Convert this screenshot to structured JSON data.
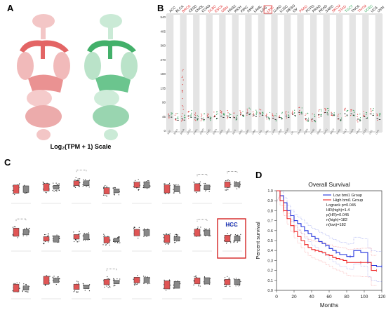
{
  "panel_a": {
    "letter": "A",
    "scale_label": "Log₂(TPM + 1) Scale",
    "colors": {
      "tumor": "#e05555",
      "normal": "#2fa85a"
    }
  },
  "panel_b": {
    "letter": "B",
    "cancers": [
      "ACC",
      "BLCA",
      "BRCA",
      "CESC",
      "CHOL",
      "COAD",
      "DLBC",
      "ESCA",
      "GBM",
      "HNSC",
      "KICH",
      "KIRC",
      "KIRP",
      "LAML",
      "LGG",
      "LIHC",
      "LUAD",
      "LUSC",
      "MESO",
      "OV",
      "PAAD",
      "PCPG",
      "PRAD",
      "READ",
      "SARC",
      "SKCM",
      "STAD",
      "TGCT",
      "THCA",
      "THYM",
      "UCEC",
      "UCS",
      "UVM"
    ],
    "label_colors": {
      "BRCA": "#e03030",
      "DLBC": "#e03030",
      "ESCA": "#e03030",
      "GBM": "#e03030",
      "LIHC": "#e03030",
      "PAAD": "#e03030",
      "SKCM": "#e03030",
      "STAD": "#e03030",
      "TGCT": "#2fa85a",
      "THYM": "#e03030",
      "UCEC": "#2fa85a"
    },
    "highlight": "LIHC",
    "y_ticks": [
      "540",
      "405",
      "360",
      "270",
      "180",
      "135",
      "90",
      "45",
      "0"
    ]
  },
  "panel_c": {
    "letter": "C",
    "highlight_label": "HCC",
    "rows": 3,
    "cols": 8
  },
  "panel_d": {
    "letter": "D",
    "chart_data": {
      "type": "line",
      "title": "Overall Survival",
      "xlabel": "Months",
      "ylabel": "Percent survival",
      "xlim": [
        0,
        120
      ],
      "ylim": [
        0,
        1.0
      ],
      "x_ticks": [
        "0",
        "20",
        "40",
        "60",
        "80",
        "100",
        "120"
      ],
      "y_ticks": [
        "0.0",
        "0.1",
        "0.2",
        "0.3",
        "0.4",
        "0.5",
        "0.6",
        "0.7",
        "0.8",
        "0.9",
        "1.0"
      ],
      "legend": {
        "placement": "top-right",
        "lines": [
          "Low bmi1 Group",
          "High bmi1 Group",
          "Logrank p=0.045",
          "HR(high)=1.4",
          "p(HR)=0.045",
          "n(high)=182",
          "n(low)=182"
        ]
      },
      "series": [
        {
          "name": "Low bmi1 Group",
          "color": "#2233dd",
          "x": [
            0,
            4,
            8,
            12,
            16,
            20,
            24,
            28,
            32,
            36,
            40,
            44,
            48,
            52,
            56,
            60,
            64,
            68,
            72,
            80,
            84,
            88,
            96,
            104,
            108,
            114,
            120
          ],
          "y": [
            1.0,
            0.95,
            0.88,
            0.8,
            0.75,
            0.7,
            0.67,
            0.64,
            0.6,
            0.57,
            0.54,
            0.52,
            0.49,
            0.47,
            0.45,
            0.42,
            0.4,
            0.38,
            0.36,
            0.34,
            0.34,
            0.4,
            0.38,
            0.28,
            0.25,
            0.24,
            0.24
          ]
        },
        {
          "name": "High bmi1 Group",
          "color": "#ee2222",
          "x": [
            0,
            4,
            8,
            12,
            16,
            20,
            24,
            28,
            32,
            36,
            40,
            44,
            48,
            52,
            56,
            60,
            64,
            68,
            72,
            76,
            80,
            84,
            88,
            96,
            104,
            108,
            114
          ],
          "y": [
            1.0,
            0.9,
            0.8,
            0.72,
            0.65,
            0.59,
            0.54,
            0.5,
            0.46,
            0.43,
            0.41,
            0.4,
            0.39,
            0.38,
            0.36,
            0.35,
            0.33,
            0.32,
            0.31,
            0.3,
            0.28,
            0.28,
            0.28,
            0.28,
            0.28,
            0.2,
            0.2
          ]
        }
      ]
    }
  }
}
